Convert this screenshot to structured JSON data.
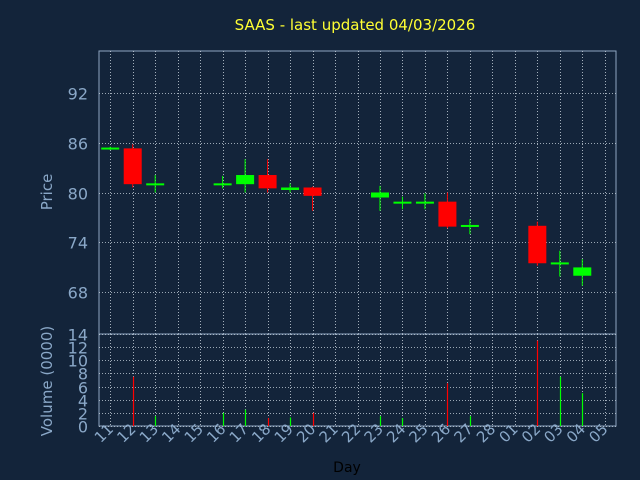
{
  "title": "SAAS - last updated 04/03/2026",
  "colors": {
    "background": "#13243a",
    "plot_border": "#8fa6c1",
    "grid": "#c9d3de",
    "title": "#ffff33",
    "axis_text": "#8aa8c8",
    "up": "#00ff00",
    "down": "#ff0000"
  },
  "chart_data": [
    {
      "type": "candlestick",
      "ylabel": "Price",
      "ylim": [
        63,
        97
      ],
      "yticks": [
        68,
        74,
        80,
        86,
        92
      ],
      "grid": true,
      "series": [
        {
          "day": "11",
          "open": 85.3,
          "high": 85.5,
          "low": 85.1,
          "close": 85.4
        },
        {
          "day": "12",
          "open": 85.3,
          "high": 85.8,
          "low": 80.6,
          "close": 81.0
        },
        {
          "day": "13",
          "open": 81.0,
          "high": 82.1,
          "low": 80.0,
          "close": 81.1
        },
        {
          "day": "16",
          "open": 81.0,
          "high": 82.0,
          "low": 80.5,
          "close": 81.1
        },
        {
          "day": "17",
          "open": 81.0,
          "high": 84.0,
          "low": 80.0,
          "close": 82.1
        },
        {
          "day": "18",
          "open": 82.1,
          "high": 84.0,
          "low": 80.0,
          "close": 80.5
        },
        {
          "day": "19",
          "open": 80.3,
          "high": 81.1,
          "low": 80.0,
          "close": 80.6
        },
        {
          "day": "20",
          "open": 80.6,
          "high": 80.7,
          "low": 77.8,
          "close": 79.6
        },
        {
          "day": "23",
          "open": 79.4,
          "high": 80.8,
          "low": 77.8,
          "close": 80.0
        },
        {
          "day": "24",
          "open": 78.8,
          "high": 79.5,
          "low": 78.0,
          "close": 78.9
        },
        {
          "day": "25",
          "open": 78.8,
          "high": 79.9,
          "low": 78.0,
          "close": 78.9
        },
        {
          "day": "26",
          "open": 78.9,
          "high": 80.0,
          "low": 75.7,
          "close": 75.9
        },
        {
          "day": "27",
          "open": 75.9,
          "high": 76.8,
          "low": 75.0,
          "close": 76.1
        },
        {
          "day": "02",
          "open": 76.0,
          "high": 76.5,
          "low": 71.2,
          "close": 71.5
        },
        {
          "day": "03",
          "open": 71.5,
          "high": 73.0,
          "low": 69.9,
          "close": 71.6
        },
        {
          "day": "04",
          "open": 70.0,
          "high": 72.0,
          "low": 68.8,
          "close": 71.0
        }
      ]
    },
    {
      "type": "bar",
      "ylabel": "Volume (0000)",
      "xlabel": "Day",
      "ylim": [
        0,
        14
      ],
      "yticks": [
        0,
        2,
        4,
        6,
        8,
        10,
        12,
        14
      ],
      "grid": true,
      "categories": [
        "11",
        "12",
        "13",
        "14",
        "15",
        "16",
        "17",
        "18",
        "19",
        "20",
        "21",
        "22",
        "23",
        "24",
        "25",
        "26",
        "27",
        "28",
        "01",
        "02",
        "03",
        "04",
        "05"
      ],
      "values": [
        0,
        7.5,
        1.5,
        0,
        0,
        2,
        2.5,
        1.2,
        1.3,
        2,
        0,
        0,
        1.5,
        1.2,
        0,
        6.5,
        1.5,
        0,
        0,
        13,
        7.5,
        5,
        0
      ],
      "colors": [
        "up",
        "down",
        "up",
        "up",
        "up",
        "up",
        "up",
        "down",
        "up",
        "down",
        "up",
        "up",
        "up",
        "up",
        "up",
        "down",
        "up",
        "up",
        "up",
        "down",
        "up",
        "up",
        "up"
      ]
    }
  ]
}
